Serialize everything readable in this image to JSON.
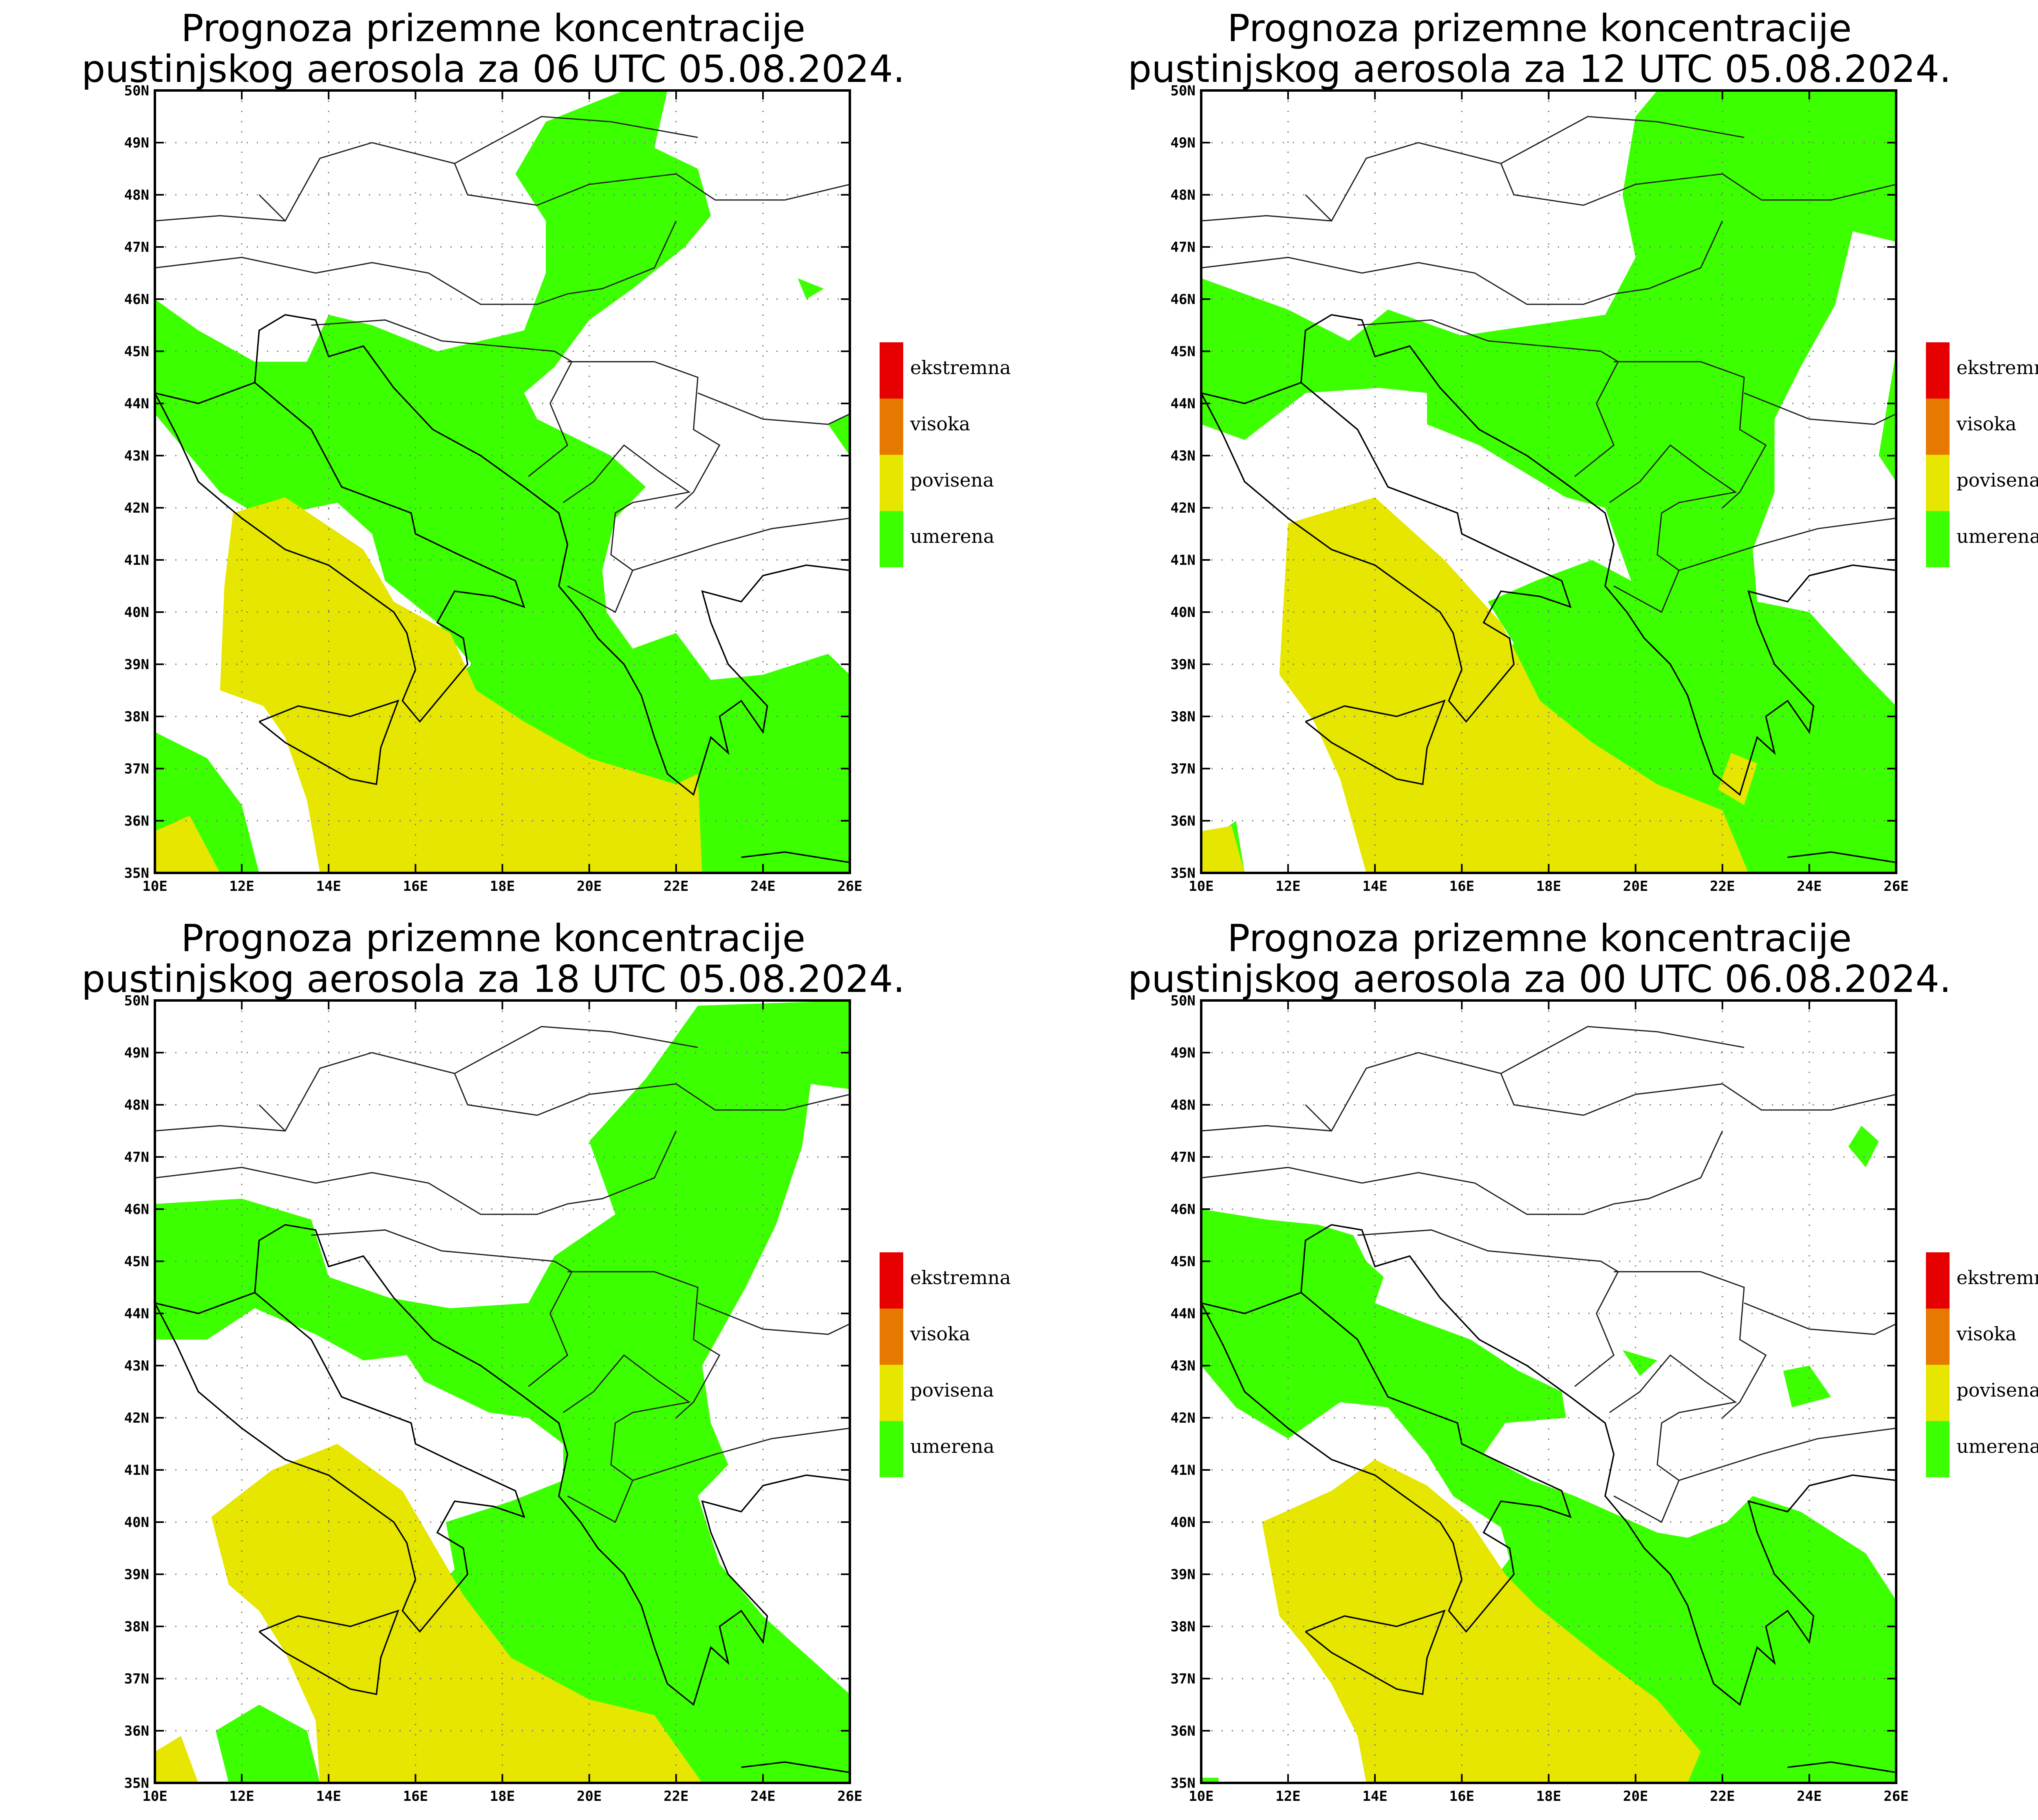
{
  "panels": [
    {
      "title_line1": "Prognoza prizemne koncentracije",
      "title_line2": "pustinjskog aerosola za 06 UTC 05.08.2024."
    },
    {
      "title_line1": "Prognoza prizemne koncentracije",
      "title_line2": "pustinjskog aerosola za 12 UTC 05.08.2024."
    },
    {
      "title_line1": "Prognoza prizemne koncentracije",
      "title_line2": "pustinjskog aerosola za 18 UTC 05.08.2024."
    },
    {
      "title_line1": "Prognoza prizemne koncentracije",
      "title_line2": "pustinjskog aerosola za 00 UTC 06.08.2024."
    }
  ],
  "axes": {
    "lat_labels": [
      "35N",
      "36N",
      "37N",
      "38N",
      "39N",
      "40N",
      "41N",
      "42N",
      "43N",
      "44N",
      "45N",
      "46N",
      "47N",
      "48N",
      "49N",
      "50N"
    ],
    "lon_labels": [
      "10E",
      "12E",
      "14E",
      "16E",
      "18E",
      "20E",
      "22E",
      "24E",
      "26E"
    ]
  },
  "legend": [
    {
      "label": "ekstremna",
      "color": "#e60000"
    },
    {
      "label": "visoka",
      "color": "#e67a00"
    },
    {
      "label": "povisena",
      "color": "#e6e600"
    },
    {
      "label": "umerena",
      "color": "#3cff00"
    }
  ],
  "colors": {
    "green": "#3cff00",
    "yellow": "#e6e600",
    "border": "#000000"
  }
}
